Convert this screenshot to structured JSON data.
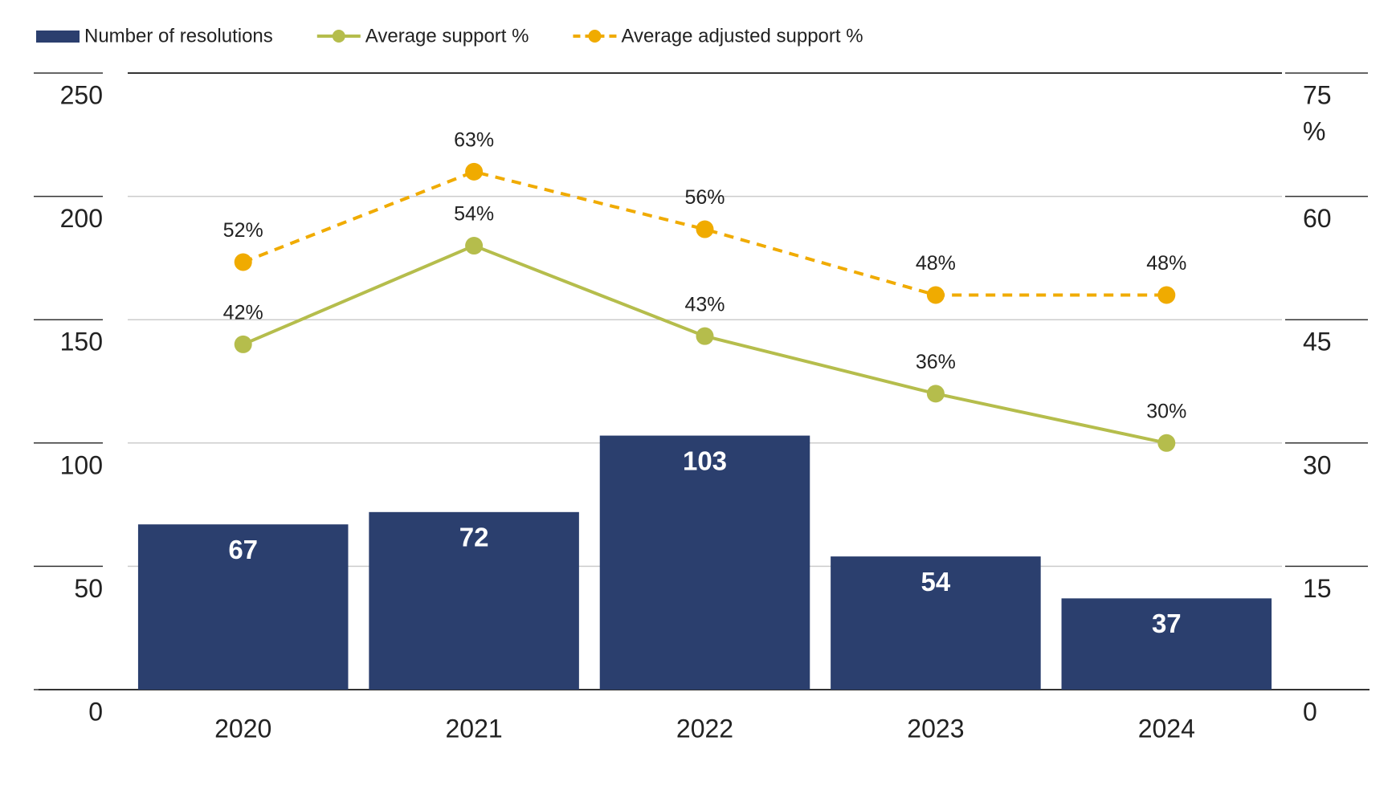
{
  "chart_data": {
    "type": "bar-line",
    "categories": [
      "2020",
      "2021",
      "2022",
      "2023",
      "2024"
    ],
    "series": [
      {
        "name": "Number of resolutions",
        "type": "bar",
        "color": "#2b3f6e",
        "values": [
          67,
          72,
          103,
          54,
          37
        ]
      },
      {
        "name": "Average support %",
        "type": "line",
        "axis": "y2",
        "color": "#b5bd4c",
        "dashed": false,
        "values": [
          42,
          54,
          43,
          36,
          30
        ],
        "value_labels": [
          "42%",
          "54%",
          "43%",
          "36%",
          "30%"
        ]
      },
      {
        "name": "Average adjusted support %",
        "type": "line",
        "axis": "y2",
        "color": "#f0ab00",
        "dashed": true,
        "values": [
          52,
          63,
          56,
          48,
          48
        ],
        "value_labels": [
          "52%",
          "63%",
          "56%",
          "48%",
          "48%"
        ]
      }
    ],
    "ylim": [
      0,
      250
    ],
    "yticks": [
      0,
      50,
      100,
      150,
      200,
      250
    ],
    "y2lim": [
      0,
      75
    ],
    "y2ticks": [
      0,
      15,
      30,
      45,
      60,
      75
    ],
    "y2_unit_label": "%",
    "grid": true,
    "legend": "top-left"
  }
}
